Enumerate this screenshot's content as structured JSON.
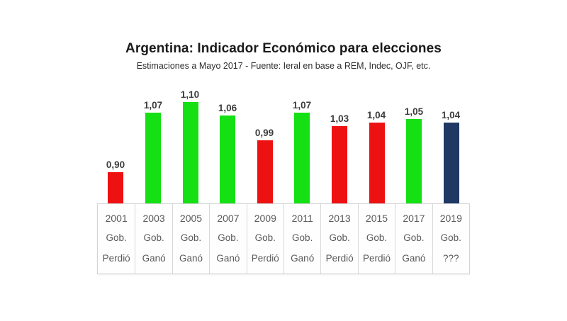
{
  "header": {
    "title": "Argentina: Indicador Económico para elecciones",
    "subtitle": "Estimaciones a Mayo 2017 - Fuente: Ieral en base a REM, Indec, OJF, etc."
  },
  "chart_data": {
    "type": "bar",
    "title": "Argentina: Indicador Económico para elecciones",
    "subtitle": "Estimaciones a Mayo 2017 - Fuente: Ieral en base a REM, Indec, OJF, etc.",
    "categories": [
      "2001",
      "2003",
      "2005",
      "2007",
      "2009",
      "2011",
      "2013",
      "2015",
      "2017",
      "2019"
    ],
    "values": [
      0.9,
      1.07,
      1.1,
      1.06,
      0.99,
      1.07,
      1.03,
      1.04,
      1.05,
      1.04
    ],
    "value_labels": [
      "0,90",
      "1,07",
      "1,10",
      "1,06",
      "0,99",
      "1,07",
      "1,03",
      "1,04",
      "1,05",
      "1,04"
    ],
    "row_label": "Gob.",
    "outcomes": [
      "Perdió",
      "Ganó",
      "Ganó",
      "Ganó",
      "Perdió",
      "Ganó",
      "Perdió",
      "Perdió",
      "Ganó",
      "???"
    ],
    "status_colors": {
      "Ganó": "#14e014",
      "Perdió": "#ee1111",
      "???": "#1f3864"
    },
    "xlabel": "",
    "ylabel": "",
    "ylim": [
      0.81,
      1.15
    ],
    "grid": false,
    "legend_position": "none"
  }
}
